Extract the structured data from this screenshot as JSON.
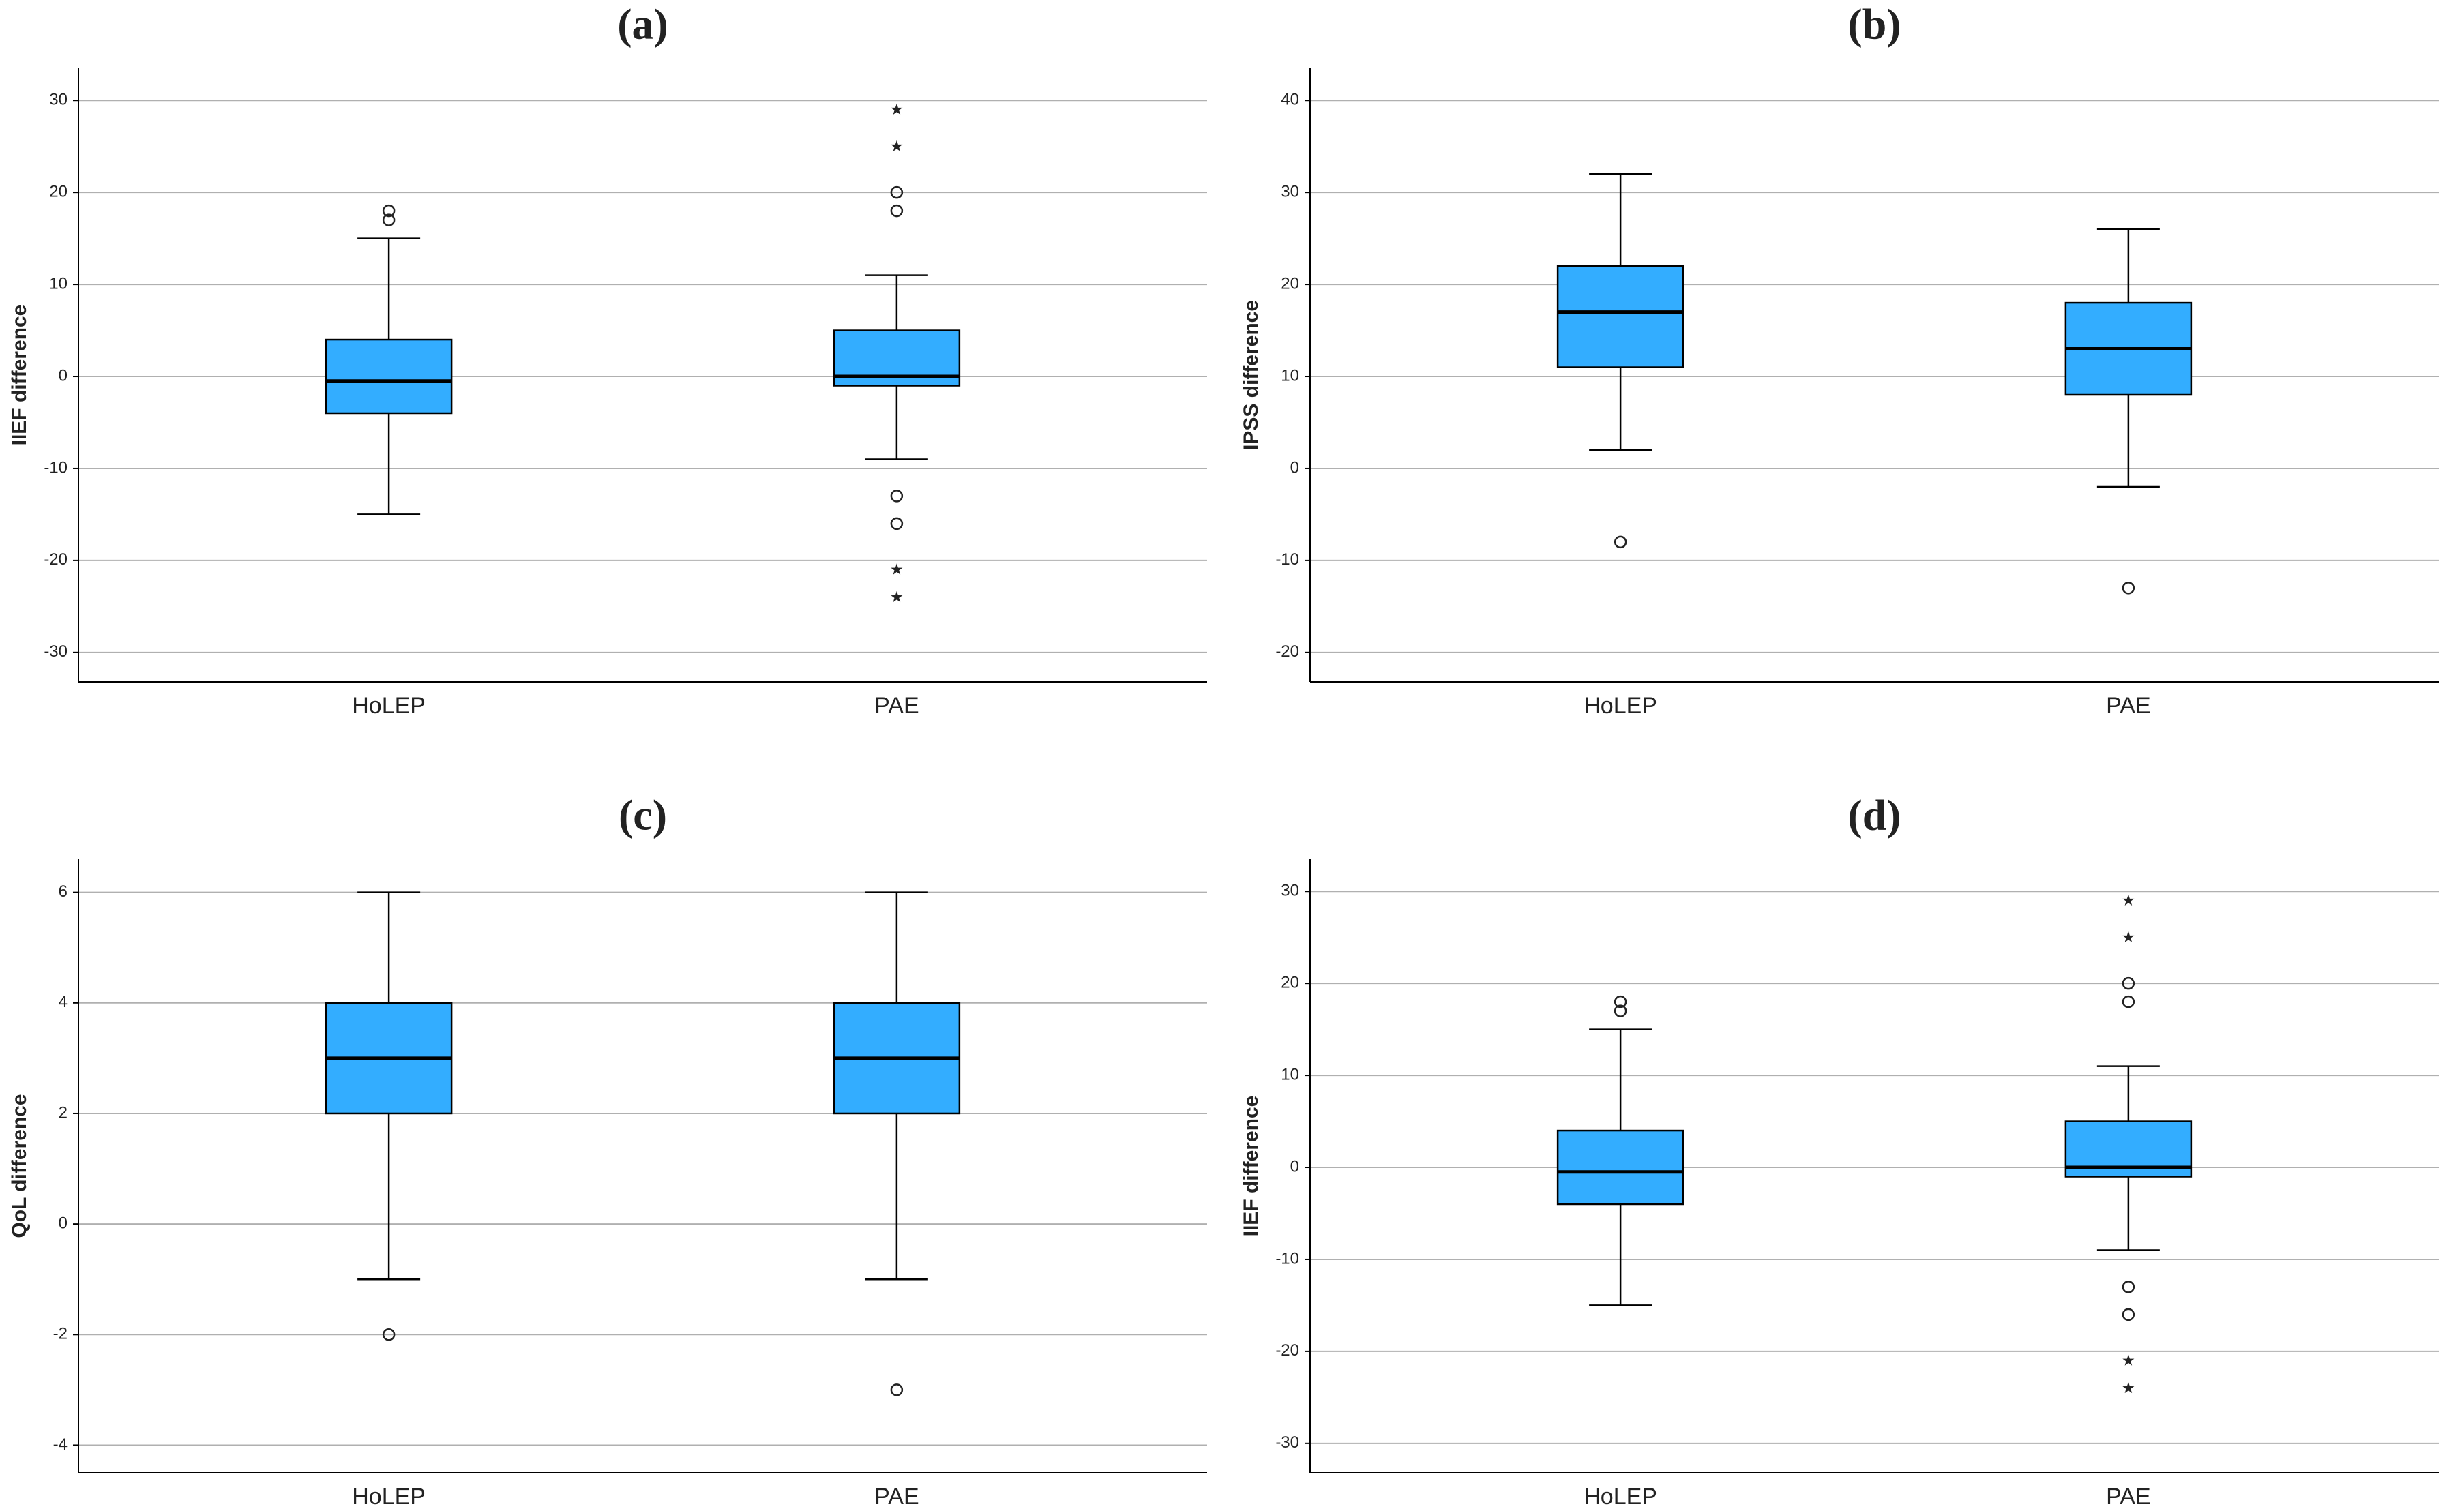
{
  "chart_data": [
    {
      "type": "box",
      "title": "(a)",
      "ylabel": "IIEF difference",
      "categories": [
        "HoLEP",
        "PAE"
      ],
      "color": "#33adff",
      "ylim": [
        -33.2,
        33.5
      ],
      "yticks": [
        -30,
        -20,
        -10,
        0,
        10,
        20,
        30
      ],
      "grid": true,
      "boxes": [
        {
          "whisker_low": -15,
          "q1": -4,
          "median": -0.5,
          "q3": 4,
          "whisker_high": 15,
          "outliers": [
            17,
            18
          ],
          "extremes": []
        },
        {
          "whisker_low": -9,
          "q1": -1,
          "median": 0,
          "q3": 5,
          "whisker_high": 11,
          "outliers": [
            -16,
            -13,
            18,
            20
          ],
          "extremes": [
            -24,
            -21,
            25,
            29
          ]
        }
      ]
    },
    {
      "type": "box",
      "title": "(b)",
      "ylabel": "IPSS difference",
      "categories": [
        "HoLEP",
        "PAE"
      ],
      "color": "#33adff",
      "ylim": [
        -23.2,
        43.5
      ],
      "yticks": [
        -20,
        -10,
        0,
        10,
        20,
        30,
        40
      ],
      "grid": true,
      "boxes": [
        {
          "whisker_low": 2,
          "q1": 11,
          "median": 17,
          "q3": 22,
          "whisker_high": 32,
          "outliers": [
            -8
          ],
          "extremes": []
        },
        {
          "whisker_low": -2,
          "q1": 8,
          "median": 13,
          "q3": 18,
          "whisker_high": 26,
          "outliers": [
            -13
          ],
          "extremes": []
        }
      ]
    },
    {
      "type": "box",
      "title": "(c)",
      "ylabel": "QoL difference",
      "categories": [
        "HoLEP",
        "PAE"
      ],
      "color": "#33adff",
      "ylim": [
        -4.5,
        6.6
      ],
      "yticks": [
        -4,
        -2,
        0,
        2,
        4,
        6
      ],
      "grid": true,
      "boxes": [
        {
          "whisker_low": -1,
          "q1": 2,
          "median": 3,
          "q3": 4,
          "whisker_high": 6,
          "outliers": [
            -2
          ],
          "extremes": []
        },
        {
          "whisker_low": -1,
          "q1": 2,
          "median": 3,
          "q3": 4,
          "whisker_high": 6,
          "outliers": [
            -3
          ],
          "extremes": []
        }
      ]
    },
    {
      "type": "box",
      "title": "(d)",
      "ylabel": "IIEF difference",
      "categories": [
        "HoLEP",
        "PAE"
      ],
      "color": "#33adff",
      "ylim": [
        -33.2,
        33.5
      ],
      "yticks": [
        -30,
        -20,
        -10,
        0,
        10,
        20,
        30
      ],
      "grid": true,
      "boxes": [
        {
          "whisker_low": -15,
          "q1": -4,
          "median": -0.5,
          "q3": 4,
          "whisker_high": 15,
          "outliers": [
            17,
            18
          ],
          "extremes": []
        },
        {
          "whisker_low": -9,
          "q1": -1,
          "median": 0,
          "q3": 5,
          "whisker_high": 11,
          "outliers": [
            -16,
            -13,
            18,
            20
          ],
          "extremes": [
            -24,
            -21,
            25,
            29
          ]
        }
      ]
    }
  ]
}
